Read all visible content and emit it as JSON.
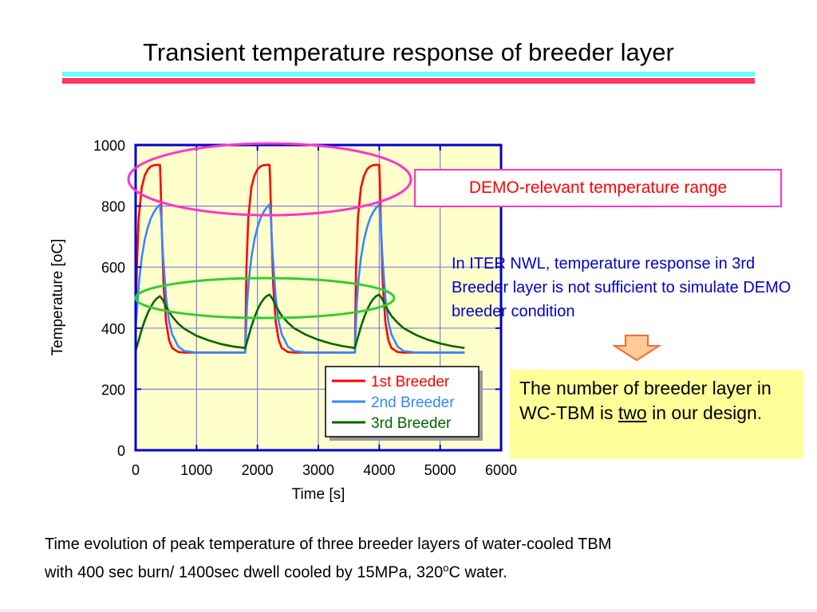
{
  "slide": {
    "title": "Transient temperature response of breeder layer",
    "callout_demo": "DEMO-relevant temperature range",
    "note_iter": "In ITER NWL, temperature response in 3rd Breeder layer is not sufficient to simulate DEMO breeder condition",
    "conclusion_before": "The number of breeder layer in WC-TBM is ",
    "conclusion_underlined": "two",
    "conclusion_after": " in our design.",
    "caption_line1": "Time evolution of peak temperature of three breeder layers of water-cooled TBM",
    "caption_line2_a": "with 400 sec burn/ 1400sec dwell cooled by 15MPa, 320",
    "caption_sup": "o",
    "caption_line2_b": "C water."
  },
  "colors": {
    "plot_bg": "#ffffcc",
    "axis": "#0000cc",
    "grid": "#7f7fd9",
    "red_series": "#ff0000",
    "blue_series": "#3388ff",
    "green_series": "#006600",
    "demo_ellipse": "#ff33cc",
    "iter_ellipse": "#33cc33",
    "arrow_fill": "#ffcc99",
    "arrow_stroke": "#ff6633"
  },
  "chart_data": {
    "type": "line",
    "xlabel": "Time [s]",
    "ylabel": "Temperature [oC]",
    "xlim": [
      0,
      6000
    ],
    "ylim": [
      0,
      1000
    ],
    "xticks": [
      0,
      1000,
      2000,
      3000,
      4000,
      5000,
      6000
    ],
    "yticks": [
      0,
      200,
      400,
      600,
      800,
      1000
    ],
    "grid": true,
    "legend_position": "bottom-right",
    "series": [
      {
        "name": "1st Breeder",
        "color": "#ff0000",
        "x": [
          0,
          20,
          50,
          100,
          150,
          200,
          250,
          300,
          350,
          400,
          410,
          430,
          460,
          500,
          550,
          600,
          700,
          800,
          1000,
          1800,
          1820,
          1850,
          1900,
          1950,
          2000,
          2050,
          2100,
          2150,
          2200,
          2210,
          2230,
          2260,
          2300,
          2350,
          2400,
          2500,
          2600,
          2800,
          3600,
          3620,
          3650,
          3700,
          3750,
          3800,
          3850,
          3900,
          3950,
          4000,
          4010,
          4030,
          4060,
          4100,
          4150,
          4200,
          4300,
          4400,
          4600,
          5400
        ],
        "y": [
          400,
          600,
          760,
          860,
          900,
          920,
          930,
          934,
          935,
          935,
          880,
          720,
          540,
          420,
          360,
          335,
          322,
          320,
          320,
          320,
          600,
          760,
          860,
          900,
          920,
          930,
          934,
          935,
          935,
          880,
          720,
          540,
          420,
          360,
          335,
          322,
          320,
          320,
          320,
          600,
          760,
          860,
          900,
          920,
          930,
          934,
          935,
          935,
          880,
          720,
          540,
          420,
          360,
          335,
          322,
          320,
          320,
          320
        ]
      },
      {
        "name": "2nd Breeder",
        "color": "#3388ff",
        "x": [
          0,
          30,
          60,
          100,
          150,
          200,
          250,
          300,
          350,
          400,
          420,
          450,
          500,
          550,
          600,
          700,
          800,
          1000,
          1800,
          1830,
          1860,
          1900,
          1950,
          2000,
          2050,
          2100,
          2150,
          2200,
          2220,
          2250,
          2300,
          2350,
          2400,
          2500,
          2600,
          2800,
          3600,
          3630,
          3660,
          3700,
          3750,
          3800,
          3850,
          3900,
          3950,
          4000,
          4020,
          4050,
          4100,
          4150,
          4200,
          4300,
          4400,
          4600,
          5400
        ],
        "y": [
          400,
          480,
          560,
          630,
          690,
          730,
          760,
          780,
          795,
          805,
          760,
          640,
          500,
          420,
          380,
          340,
          325,
          320,
          320,
          480,
          560,
          630,
          690,
          730,
          760,
          780,
          795,
          805,
          760,
          640,
          500,
          420,
          380,
          340,
          325,
          320,
          320,
          480,
          560,
          630,
          690,
          730,
          760,
          780,
          795,
          805,
          760,
          640,
          500,
          420,
          380,
          340,
          325,
          320,
          320
        ]
      },
      {
        "name": "3rd Breeder",
        "color": "#006600",
        "x": [
          0,
          50,
          100,
          150,
          200,
          250,
          300,
          350,
          400,
          450,
          500,
          600,
          700,
          800,
          1000,
          1200,
          1400,
          1600,
          1800,
          1850,
          1900,
          1950,
          2000,
          2050,
          2100,
          2150,
          2200,
          2250,
          2300,
          2400,
          2500,
          2600,
          2800,
          3000,
          3200,
          3400,
          3600,
          3650,
          3700,
          3750,
          3800,
          3850,
          3900,
          3950,
          4000,
          4050,
          4100,
          4200,
          4300,
          4400,
          4600,
          4800,
          5000,
          5200,
          5400
        ],
        "y": [
          325,
          360,
          395,
          425,
          450,
          470,
          487,
          498,
          505,
          492,
          470,
          438,
          415,
          398,
          375,
          360,
          348,
          340,
          335,
          370,
          405,
          435,
          460,
          480,
          495,
          505,
          510,
          495,
          473,
          440,
          418,
          400,
          378,
          362,
          350,
          341,
          335,
          370,
          405,
          435,
          460,
          480,
          495,
          505,
          510,
          495,
          473,
          440,
          418,
          400,
          378,
          362,
          350,
          341,
          335
        ]
      }
    ]
  }
}
